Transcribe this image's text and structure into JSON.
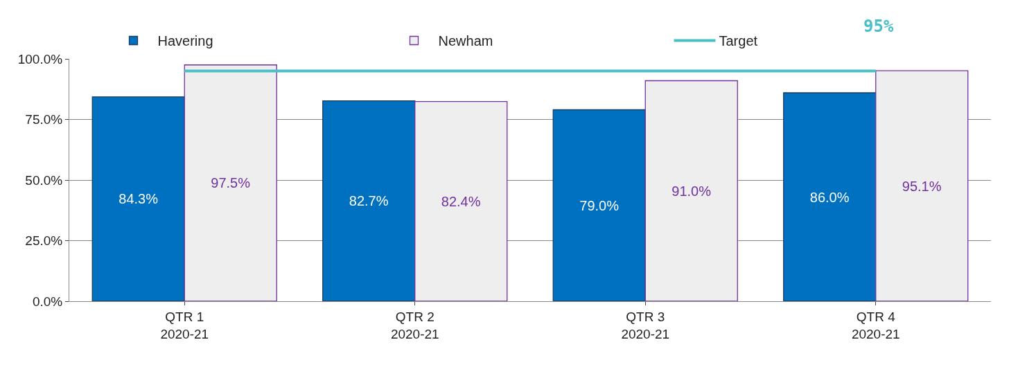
{
  "chart_data": {
    "type": "bar",
    "categories": [
      "QTR 1\n2020-21",
      "QTR 2\n2020-21",
      "QTR 3\n2020-21",
      "QTR 4\n2020-21"
    ],
    "series": [
      {
        "name": "Havering",
        "color": "#0070c0",
        "values": [
          84.3,
          82.7,
          79.0,
          86.0
        ],
        "value_labels": [
          "84.3%",
          "82.7%",
          "79.0%",
          "86.0%"
        ]
      },
      {
        "name": "Newham",
        "color": "#eeeeee",
        "values": [
          97.5,
          82.4,
          91.0,
          95.1
        ],
        "value_labels": [
          "97.5%",
          "82.4%",
          "91.0%",
          "95.1%"
        ]
      },
      {
        "name": "Target",
        "type": "line",
        "color": "#4bbfc6",
        "values": [
          95,
          95,
          95,
          95
        ],
        "marker": "none"
      }
    ],
    "annotations": [
      "95%"
    ],
    "ylim": [
      0,
      100
    ],
    "yticks": [
      {
        "value": 0,
        "label": "0.0%"
      },
      {
        "value": 25,
        "label": "25.0%"
      },
      {
        "value": 50,
        "label": "50.0%"
      },
      {
        "value": 75,
        "label": "75.0%"
      },
      {
        "value": 100,
        "label": "100.0%"
      }
    ],
    "grid": "y",
    "legend": "top"
  }
}
